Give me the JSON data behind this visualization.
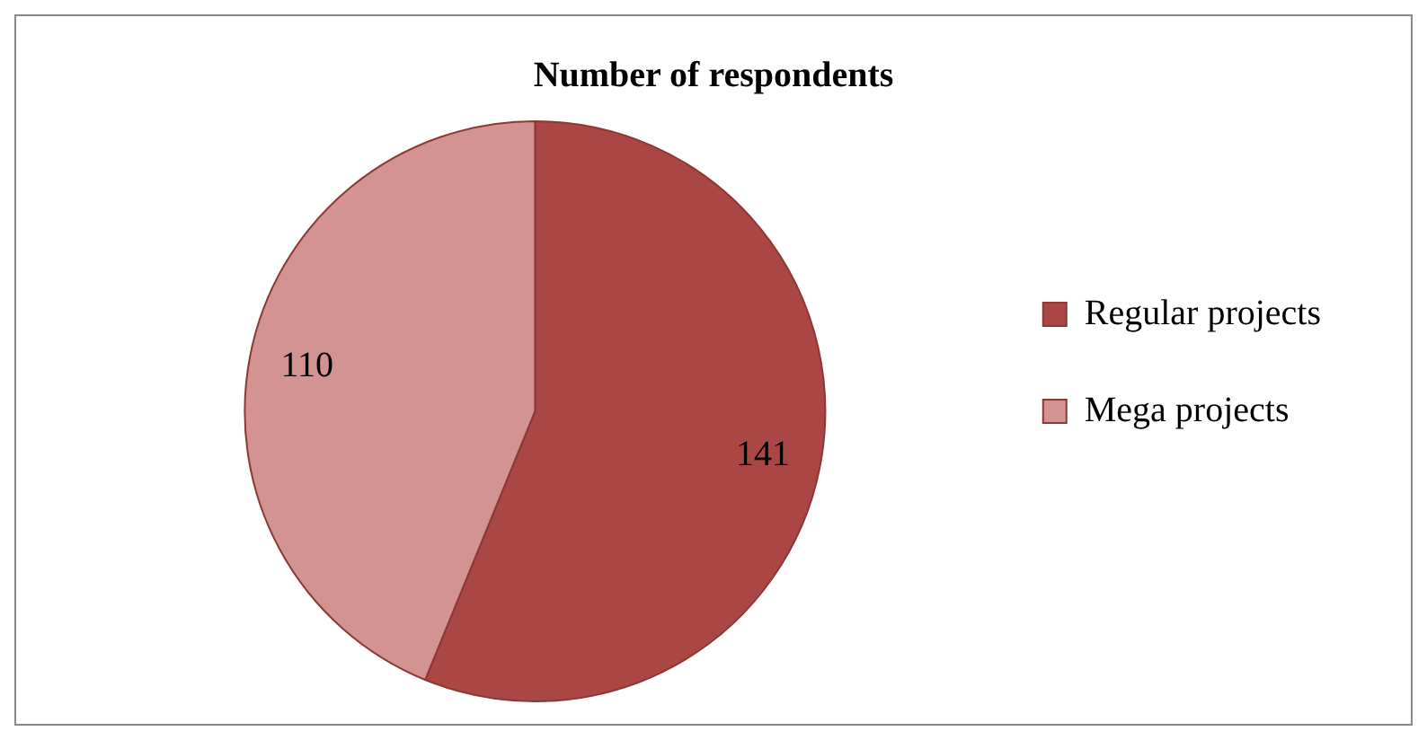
{
  "chart_data": {
    "type": "pie",
    "title": "Number of respondents",
    "categories": [
      "Regular projects",
      "Mega projects"
    ],
    "values": [
      141,
      110
    ],
    "colors": [
      "#aa4644",
      "#d39391"
    ],
    "data_labels": true,
    "legend": "right"
  }
}
